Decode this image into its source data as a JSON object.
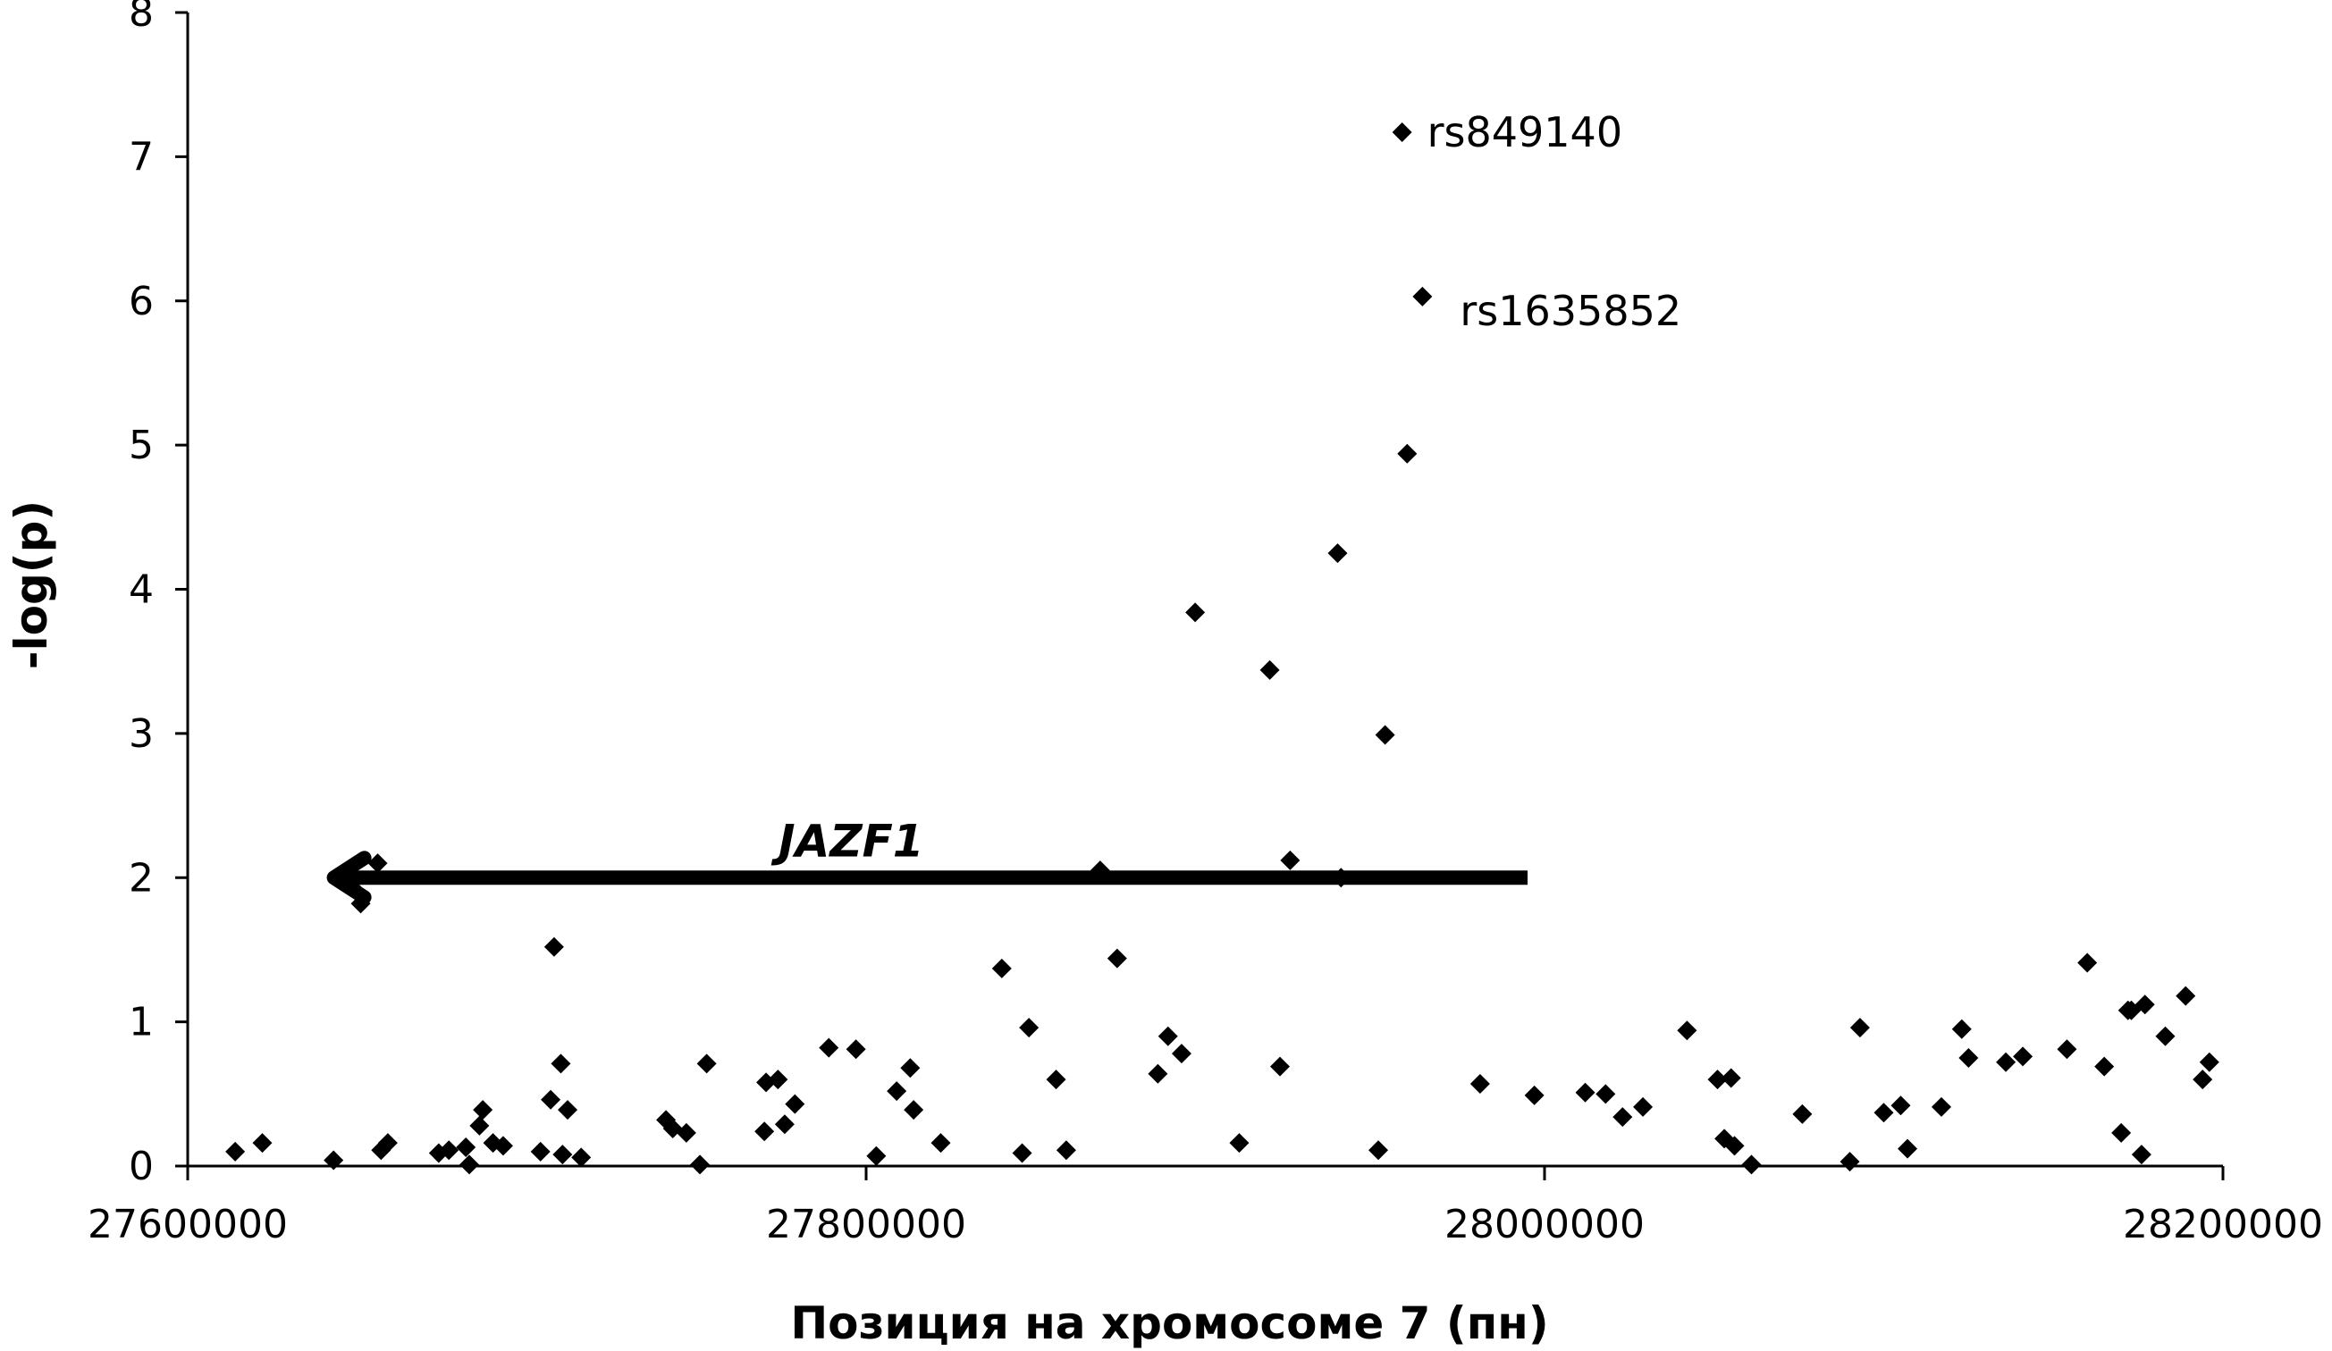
{
  "chart_data": {
    "type": "scatter",
    "xlabel": "Позиция на хромосоме 7 (пн)",
    "ylabel": "-log(p)",
    "xlim": [
      27600000,
      28200000
    ],
    "ylim": [
      0,
      8
    ],
    "x_ticks": [
      27600000,
      27800000,
      28000000,
      28200000
    ],
    "x_tick_labels": [
      "27600000",
      "27800000",
      "28000000",
      "28200000"
    ],
    "y_ticks": [
      0,
      1,
      2,
      3,
      4,
      5,
      6,
      7,
      8
    ],
    "y_tick_labels": [
      "0",
      "1",
      "2",
      "3",
      "4",
      "5",
      "6",
      "7",
      "8"
    ],
    "grid": false,
    "marker_color": "#000000",
    "points": [
      {
        "x": 27614000,
        "y": 0.1
      },
      {
        "x": 27622000,
        "y": 0.16
      },
      {
        "x": 27643000,
        "y": 0.04
      },
      {
        "x": 27649000,
        "y": 1.92
      },
      {
        "x": 27651000,
        "y": 1.82
      },
      {
        "x": 27656000,
        "y": 2.1
      },
      {
        "x": 27657000,
        "y": 0.11
      },
      {
        "x": 27659000,
        "y": 0.16
      },
      {
        "x": 27674000,
        "y": 0.09
      },
      {
        "x": 27677000,
        "y": 0.11
      },
      {
        "x": 27682000,
        "y": 0.13
      },
      {
        "x": 27683000,
        "y": 0.01
      },
      {
        "x": 27686000,
        "y": 0.28
      },
      {
        "x": 27687000,
        "y": 0.39
      },
      {
        "x": 27690000,
        "y": 0.16
      },
      {
        "x": 27693000,
        "y": 0.14
      },
      {
        "x": 27704000,
        "y": 0.1
      },
      {
        "x": 27707000,
        "y": 0.46
      },
      {
        "x": 27708000,
        "y": 1.52
      },
      {
        "x": 27710000,
        "y": 0.71
      },
      {
        "x": 27710500,
        "y": 0.08
      },
      {
        "x": 27712000,
        "y": 0.39
      },
      {
        "x": 27716000,
        "y": 0.06
      },
      {
        "x": 27741000,
        "y": 0.32
      },
      {
        "x": 27743000,
        "y": 0.26
      },
      {
        "x": 27747000,
        "y": 0.23
      },
      {
        "x": 27751000,
        "y": 0.01
      },
      {
        "x": 27753000,
        "y": 0.71
      },
      {
        "x": 27770000,
        "y": 0.24
      },
      {
        "x": 27770500,
        "y": 0.58
      },
      {
        "x": 27774000,
        "y": 0.6
      },
      {
        "x": 27776000,
        "y": 0.29
      },
      {
        "x": 27779000,
        "y": 0.43
      },
      {
        "x": 27789000,
        "y": 0.82
      },
      {
        "x": 27797000,
        "y": 0.81
      },
      {
        "x": 27803000,
        "y": 0.07
      },
      {
        "x": 27809000,
        "y": 0.52
      },
      {
        "x": 27813000,
        "y": 0.68
      },
      {
        "x": 27814000,
        "y": 0.39
      },
      {
        "x": 27822000,
        "y": 0.16
      },
      {
        "x": 27840000,
        "y": 1.37
      },
      {
        "x": 27846000,
        "y": 0.09
      },
      {
        "x": 27848000,
        "y": 0.96
      },
      {
        "x": 27856000,
        "y": 0.6
      },
      {
        "x": 27859000,
        "y": 0.11
      },
      {
        "x": 27869000,
        "y": 2.05
      },
      {
        "x": 27874000,
        "y": 1.44
      },
      {
        "x": 27886000,
        "y": 0.64
      },
      {
        "x": 27889000,
        "y": 0.9
      },
      {
        "x": 27893000,
        "y": 0.78
      },
      {
        "x": 27897000,
        "y": 3.84
      },
      {
        "x": 27910000,
        "y": 0.16
      },
      {
        "x": 27919000,
        "y": 3.44
      },
      {
        "x": 27922000,
        "y": 0.69
      },
      {
        "x": 27925000,
        "y": 2.12
      },
      {
        "x": 27939000,
        "y": 4.25
      },
      {
        "x": 27940000,
        "y": 2.0
      },
      {
        "x": 27951000,
        "y": 0.11
      },
      {
        "x": 27953000,
        "y": 2.99
      },
      {
        "x": 27958000,
        "y": 7.17
      },
      {
        "x": 27959500,
        "y": 4.94
      },
      {
        "x": 27964000,
        "y": 6.03
      },
      {
        "x": 27981000,
        "y": 0.57
      },
      {
        "x": 27997000,
        "y": 0.49
      },
      {
        "x": 28012000,
        "y": 0.51
      },
      {
        "x": 28018000,
        "y": 0.5
      },
      {
        "x": 28023000,
        "y": 0.34
      },
      {
        "x": 28029000,
        "y": 0.41
      },
      {
        "x": 28042000,
        "y": 0.94
      },
      {
        "x": 28051000,
        "y": 0.6
      },
      {
        "x": 28053000,
        "y": 0.19
      },
      {
        "x": 28055000,
        "y": 0.61
      },
      {
        "x": 28056000,
        "y": 0.14
      },
      {
        "x": 28061000,
        "y": 0.01
      },
      {
        "x": 28076000,
        "y": 0.36
      },
      {
        "x": 28090000,
        "y": 0.03
      },
      {
        "x": 28093000,
        "y": 0.96
      },
      {
        "x": 28100000,
        "y": 0.37
      },
      {
        "x": 28105000,
        "y": 0.42
      },
      {
        "x": 28107000,
        "y": 0.12
      },
      {
        "x": 28117000,
        "y": 0.41
      },
      {
        "x": 28123000,
        "y": 0.95
      },
      {
        "x": 28125000,
        "y": 0.75
      },
      {
        "x": 28136000,
        "y": 0.72
      },
      {
        "x": 28141000,
        "y": 0.76
      },
      {
        "x": 28154000,
        "y": 0.81
      },
      {
        "x": 28160000,
        "y": 1.41
      },
      {
        "x": 28165000,
        "y": 0.69
      },
      {
        "x": 28170000,
        "y": 0.23
      },
      {
        "x": 28172000,
        "y": 1.08
      },
      {
        "x": 28173000,
        "y": 1.08
      },
      {
        "x": 28176000,
        "y": 0.08
      },
      {
        "x": 28177000,
        "y": 1.12
      },
      {
        "x": 28183000,
        "y": 0.9
      },
      {
        "x": 28189000,
        "y": 1.18
      },
      {
        "x": 28194000,
        "y": 0.6
      },
      {
        "x": 28196000,
        "y": 0.72
      }
    ],
    "annotations": [
      {
        "text": "rs849140",
        "x": 27958000,
        "y": 7.17
      },
      {
        "text": "rs1635852",
        "x": 27964000,
        "y": 6.03
      }
    ],
    "gene": {
      "label": "JAZF1",
      "x_start": 27995000,
      "x_end": 27641000,
      "y": 2.0,
      "direction": "left"
    }
  }
}
